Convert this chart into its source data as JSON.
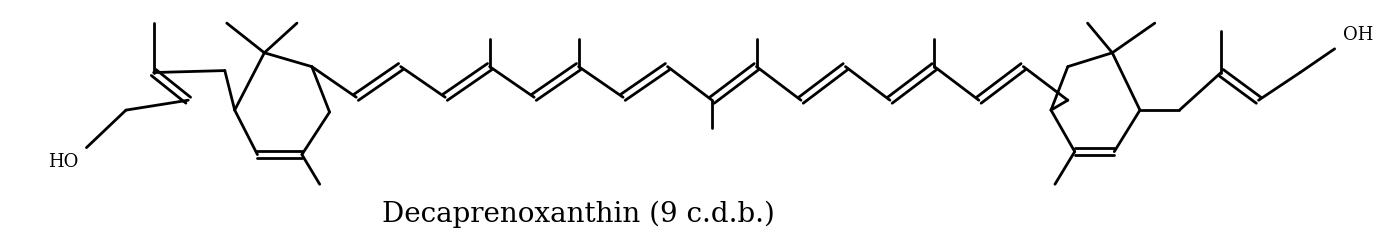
{
  "title": "Decaprenoxanthin (9 c.d.b.)",
  "title_fontsize": 20,
  "background_color": "#ffffff",
  "line_color": "#000000",
  "line_width": 2.0,
  "figsize": [
    13.81,
    2.37
  ],
  "dpi": 100
}
